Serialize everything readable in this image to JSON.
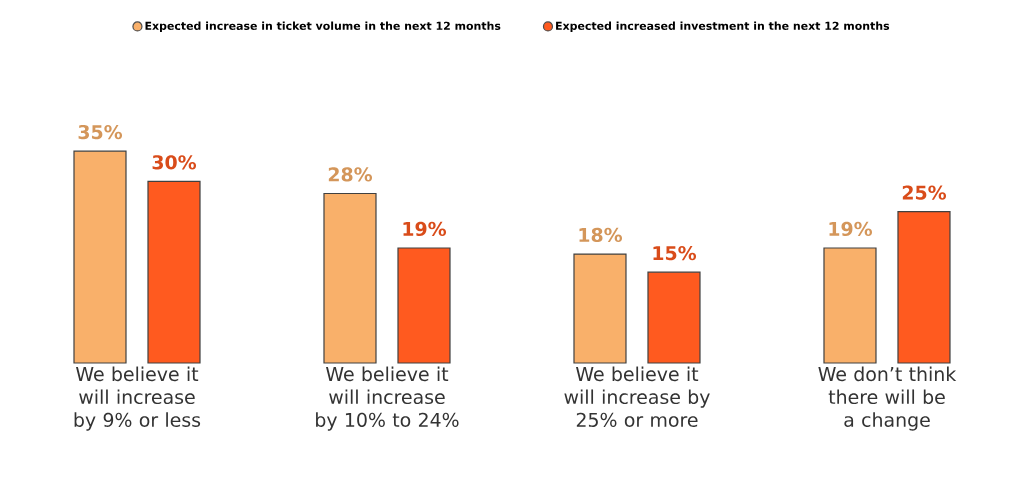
{
  "chart_data": {
    "type": "bar",
    "categories": [
      "We believe it will increase by 9% or less",
      "We believe it will increase by 10% to 24%",
      "We believe it will increase by 25% or more",
      "We don’t think there will be a change"
    ],
    "series": [
      {
        "name": "Expected increase in ticket volume in the next 12 months",
        "color": "#f9b06a",
        "values": [
          35,
          28,
          18,
          19
        ],
        "value_labels": [
          "35%",
          "28%",
          "18%",
          "19%"
        ]
      },
      {
        "name": "Expected increased investment in the next 12 months",
        "color": "#ff5a1f",
        "values": [
          30,
          19,
          15,
          25
        ],
        "value_labels": [
          "30%",
          "19%",
          "15%",
          "25%"
        ]
      }
    ],
    "legend": "top"
  }
}
